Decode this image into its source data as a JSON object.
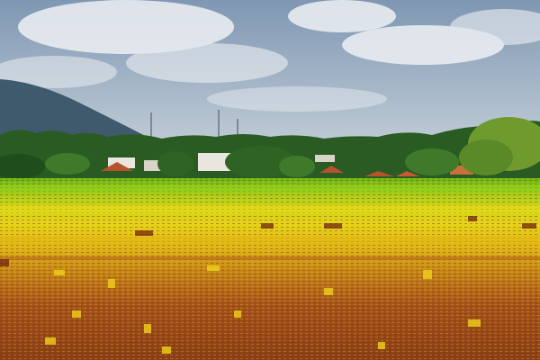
{
  "scene": {
    "subject": "landscape-photo",
    "palette": {
      "sky_top": "#7f97b3",
      "sky_bottom": "#c9d4de",
      "cloud": "#eef1f4",
      "mountain": "#3f5a6c",
      "tree_dark": "#1f4d1c",
      "tree_mid": "#3f7a2a",
      "tree_light": "#6f9a2e",
      "roof_red": "#b4532e",
      "wall_white": "#e8e6df",
      "field_green": "#7fc21a",
      "field_yellow": "#e6d41a",
      "field_orange": "#d9a414",
      "field_brown": "#a5521c",
      "field_deep": "#7f3414"
    }
  }
}
